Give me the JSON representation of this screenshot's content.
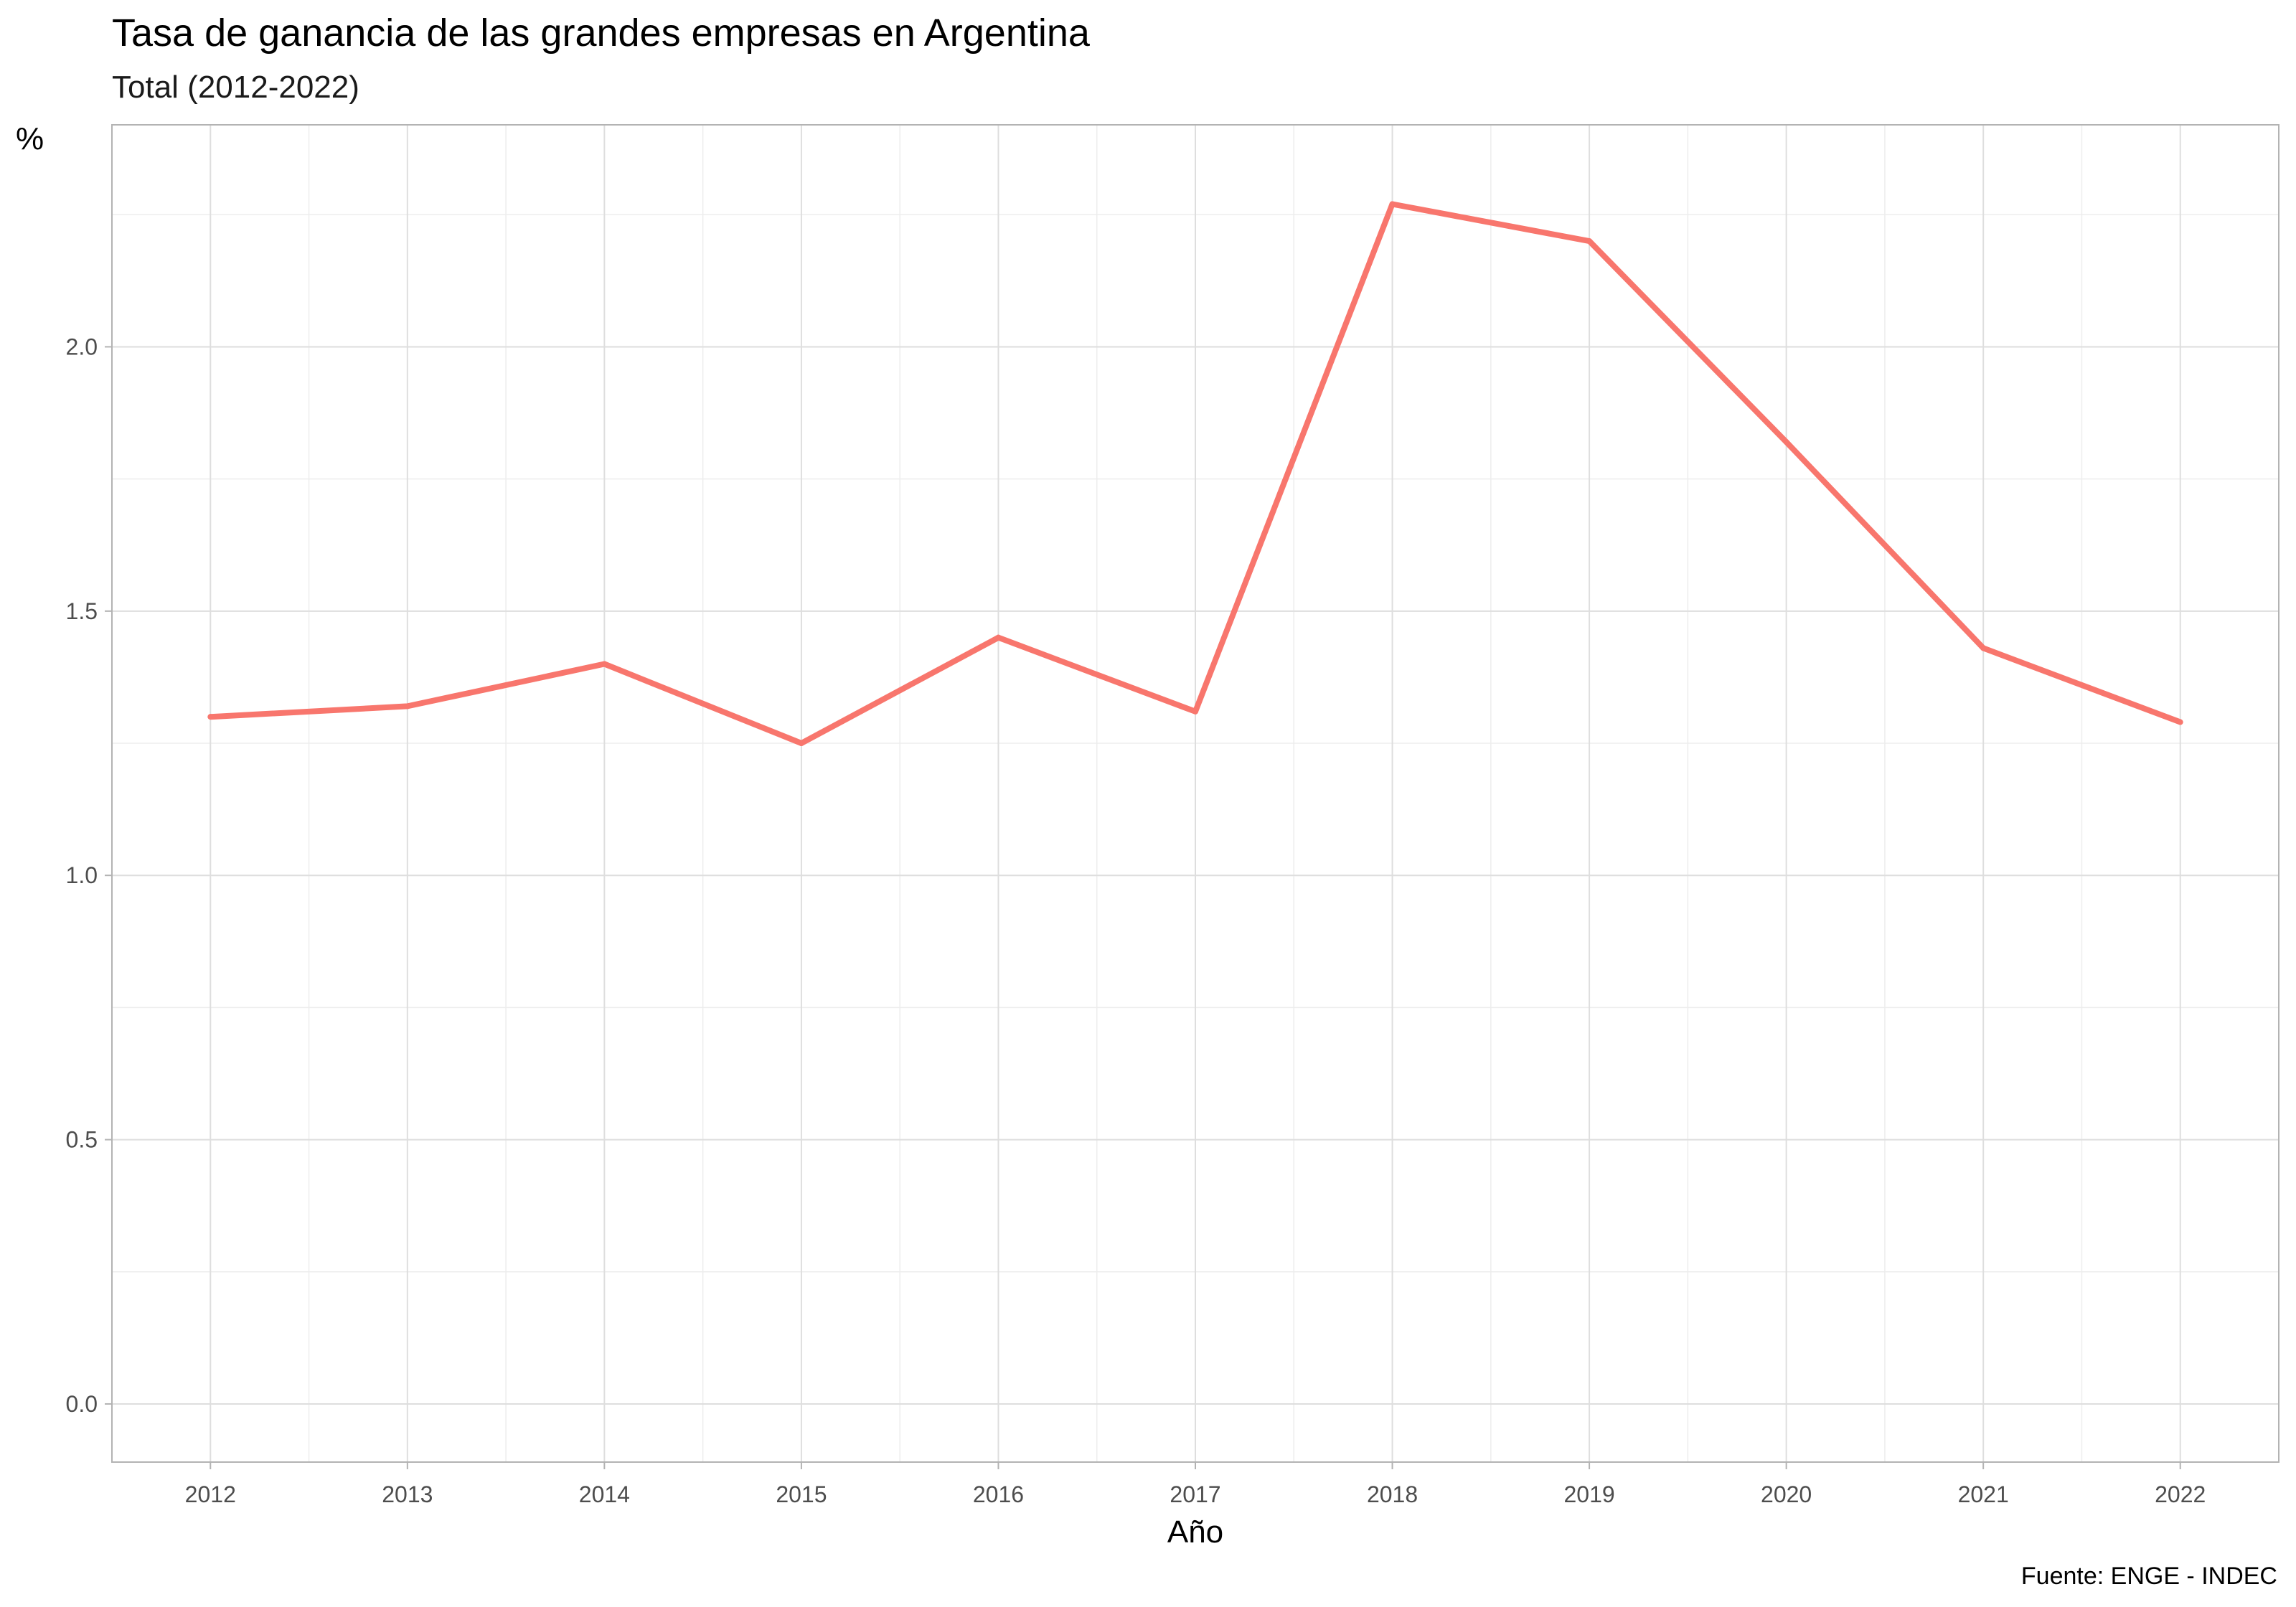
{
  "chart_data": {
    "type": "line",
    "title": "Tasa de ganancia de las grandes empresas en Argentina",
    "subtitle": "Total (2012-2022)",
    "xlabel": "Año",
    "ylabel": "%",
    "caption": "Fuente: ENGE - INDEC",
    "x": [
      2012,
      2013,
      2014,
      2015,
      2016,
      2017,
      2018,
      2019,
      2020,
      2021,
      2022
    ],
    "series": [
      {
        "values": [
          1.3,
          1.32,
          1.4,
          1.25,
          1.45,
          1.31,
          2.27,
          2.2,
          1.82,
          1.43,
          1.29
        ],
        "color": "#F8766D"
      }
    ],
    "xlim": [
      2011.5,
      2022.5
    ],
    "ylim": [
      -0.11,
      2.42
    ],
    "x_ticks": [
      "2012",
      "2013",
      "2014",
      "2015",
      "2016",
      "2017",
      "2018",
      "2019",
      "2020",
      "2021",
      "2022"
    ],
    "y_ticks": [
      "0.0",
      "0.5",
      "1.0",
      "1.5",
      "2.0"
    ],
    "y_tick_values": [
      0.0,
      0.5,
      1.0,
      1.5,
      2.0
    ],
    "grid": true,
    "legend": "none"
  }
}
